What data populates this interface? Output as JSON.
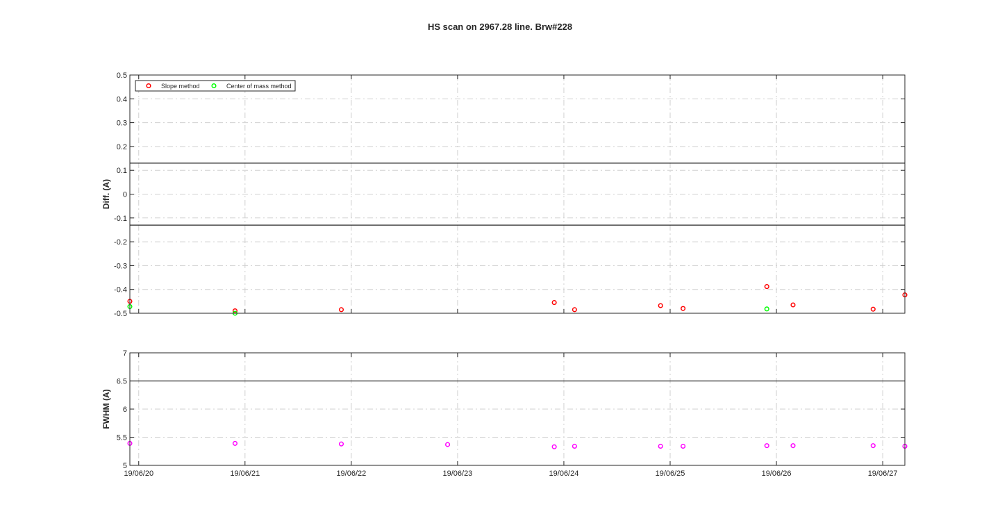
{
  "chart_data": [
    {
      "type": "scatter",
      "title": "HS scan on 2967.28 line. Brw#228",
      "xlabel": "",
      "ylabel": "Diff.  (A)",
      "xlim": [
        "2019-06-19 22:00",
        "2019-06-27 05:00"
      ],
      "ylim": [
        -0.5,
        0.5
      ],
      "yticks": [
        "0.5",
        "0.4",
        "0.3",
        "0.2",
        "0.1",
        "0",
        "-0.1",
        "-0.2",
        "-0.3",
        "-0.4",
        "-0.5"
      ],
      "grid": true,
      "legend_position": "top-left",
      "reference_lines": [
        0.13,
        -0.13
      ],
      "series": [
        {
          "name": "Slope method",
          "color": "#ff0000",
          "marker": "circle",
          "points": [
            {
              "x": "2019-06-19 22:00",
              "y": -0.45
            },
            {
              "x": "2019-06-20 21:45",
              "y": -0.49
            },
            {
              "x": "2019-06-21 21:45",
              "y": -0.485
            },
            {
              "x": "2019-06-23 21:50",
              "y": -0.455
            },
            {
              "x": "2019-06-24 02:25",
              "y": -0.485
            },
            {
              "x": "2019-06-24 21:50",
              "y": -0.468
            },
            {
              "x": "2019-06-25 02:55",
              "y": -0.48
            },
            {
              "x": "2019-06-25 21:50",
              "y": -0.388
            },
            {
              "x": "2019-06-26 03:45",
              "y": -0.465
            },
            {
              "x": "2019-06-26 21:50",
              "y": -0.483
            },
            {
              "x": "2019-06-27 05:00",
              "y": -0.423
            }
          ]
        },
        {
          "name": "Center of mass method",
          "color": "#00ff00",
          "marker": "circle",
          "points": [
            {
              "x": "2019-06-19 22:00",
              "y": -0.472
            },
            {
              "x": "2019-06-20 21:45",
              "y": -0.5
            },
            {
              "x": "2019-06-25 21:50",
              "y": -0.482
            }
          ]
        }
      ]
    },
    {
      "type": "scatter",
      "xlabel": "",
      "ylabel": "FWHM (A)",
      "xlim": [
        "2019-06-19 22:00",
        "2019-06-27 05:00"
      ],
      "ylim": [
        5,
        7
      ],
      "yticks": [
        "7",
        "6.5",
        "6",
        "5.5",
        "5"
      ],
      "xticks": [
        {
          "label": "19/06/20",
          "x": "2019-06-20 00:00"
        },
        {
          "label": "19/06/21",
          "x": "2019-06-21 00:00"
        },
        {
          "label": "19/06/22",
          "x": "2019-06-22 00:00"
        },
        {
          "label": "19/06/23",
          "x": "2019-06-23 00:00"
        },
        {
          "label": "19/06/24",
          "x": "2019-06-24 00:00"
        },
        {
          "label": "19/06/25",
          "x": "2019-06-25 00:00"
        },
        {
          "label": "19/06/26",
          "x": "2019-06-26 00:00"
        },
        {
          "label": "19/06/27",
          "x": "2019-06-27 00:00"
        }
      ],
      "grid": true,
      "reference_lines": [
        6.5
      ],
      "series": [
        {
          "color": "#ff00ff",
          "marker": "circle",
          "points": [
            {
              "x": "2019-06-19 22:00",
              "y": 5.39
            },
            {
              "x": "2019-06-20 21:45",
              "y": 5.39
            },
            {
              "x": "2019-06-21 21:45",
              "y": 5.38
            },
            {
              "x": "2019-06-22 21:45",
              "y": 5.37
            },
            {
              "x": "2019-06-23 21:50",
              "y": 5.33
            },
            {
              "x": "2019-06-24 02:25",
              "y": 5.34
            },
            {
              "x": "2019-06-24 21:50",
              "y": 5.34
            },
            {
              "x": "2019-06-25 02:55",
              "y": 5.34
            },
            {
              "x": "2019-06-25 21:50",
              "y": 5.35
            },
            {
              "x": "2019-06-26 03:45",
              "y": 5.35
            },
            {
              "x": "2019-06-26 21:50",
              "y": 5.35
            },
            {
              "x": "2019-06-27 05:00",
              "y": 5.34
            }
          ]
        }
      ]
    }
  ]
}
